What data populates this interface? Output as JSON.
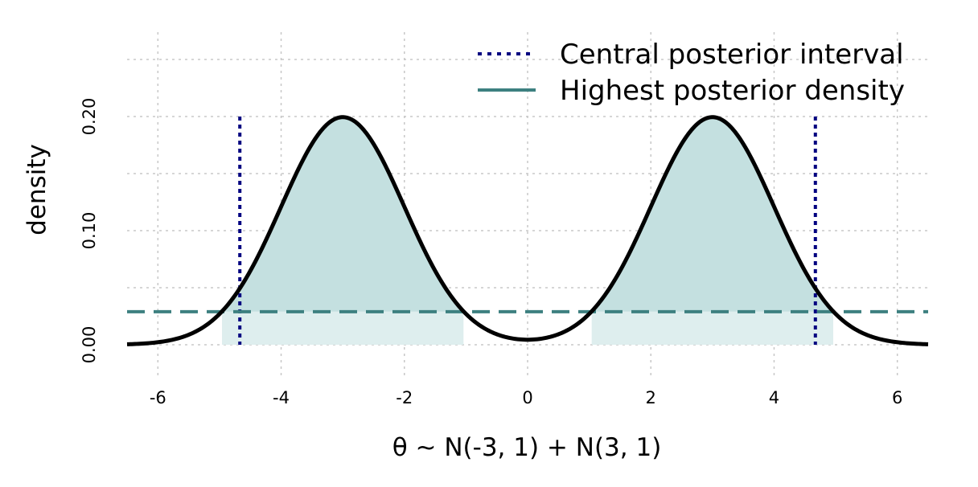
{
  "chart_data": {
    "type": "line",
    "xlabel": "θ ~ N(-3, 1) + N(3, 1)",
    "ylabel": "density",
    "xlim": [
      -6.5,
      6.5
    ],
    "ylim": [
      0,
      0.2
    ],
    "x_ticks": [
      -6,
      -4,
      -2,
      0,
      2,
      4,
      6
    ],
    "x_tick_labels": [
      "-6",
      "-4",
      "-2",
      "0",
      "2",
      "4",
      "6"
    ],
    "y_ticks": [
      0,
      0.1,
      0.2
    ],
    "y_tick_labels": [
      "0.00",
      "0.10",
      "0.20"
    ],
    "x_minor_grid": [
      -6,
      -4,
      -2,
      0,
      2,
      4,
      6
    ],
    "y_minor_grid": [
      0.05,
      0.15,
      0.25
    ],
    "grid": true,
    "legend_position": "top-right",
    "density": {
      "mixture": [
        {
          "mean": -3,
          "sd": 1,
          "weight": 0.5
        },
        {
          "mean": 3,
          "sd": 1,
          "weight": 0.5
        }
      ],
      "color": "#000000"
    },
    "central_interval": {
      "bounds": [
        -4.67,
        4.67
      ],
      "color": "#000080"
    },
    "hpd": {
      "threshold": 0.029,
      "intervals": [
        [
          -4.96,
          -1.04
        ],
        [
          1.04,
          4.96
        ]
      ],
      "color": "#3d8080",
      "fill_color": "#c4e0e0",
      "fill_color_light": "#deeeee"
    },
    "legend": [
      {
        "label": "Central posterior interval",
        "style": "dotted",
        "color": "#000080"
      },
      {
        "label": "Highest posterior density",
        "style": "solid",
        "color": "#3d8080"
      }
    ]
  }
}
